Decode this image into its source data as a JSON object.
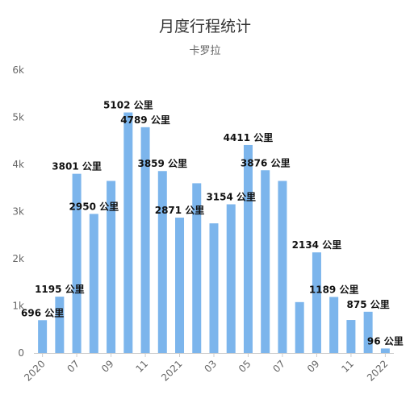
{
  "chart_data": {
    "type": "bar",
    "title": "月度行程统计",
    "subtitle": "卡罗拉",
    "unit": "公里",
    "ylim": [
      0,
      6000
    ],
    "y_ticks": [
      "0",
      "1k",
      "2k",
      "3k",
      "4k",
      "5k",
      "6k"
    ],
    "grid": false,
    "bar_color": "#7CB5EC",
    "x_tick_labels": [
      {
        "index": 0,
        "label": "2020"
      },
      {
        "index": 2,
        "label": "07"
      },
      {
        "index": 4,
        "label": "09"
      },
      {
        "index": 6,
        "label": "11"
      },
      {
        "index": 8,
        "label": "2021"
      },
      {
        "index": 10,
        "label": "03"
      },
      {
        "index": 12,
        "label": "05"
      },
      {
        "index": 14,
        "label": "07"
      },
      {
        "index": 16,
        "label": "09"
      },
      {
        "index": 18,
        "label": "11"
      },
      {
        "index": 20,
        "label": "2022"
      }
    ],
    "values": [
      696,
      1195,
      3801,
      2950,
      3650,
      5102,
      4789,
      3859,
      2871,
      3600,
      2750,
      3154,
      4411,
      3876,
      3650,
      1080,
      2134,
      1189,
      700,
      875,
      96
    ],
    "data_labels": [
      {
        "index": 0,
        "text": "696 公里"
      },
      {
        "index": 1,
        "text": "1195 公里"
      },
      {
        "index": 2,
        "text": "3801 公里"
      },
      {
        "index": 3,
        "text": "2950 公里"
      },
      {
        "index": 5,
        "text": "5102 公里"
      },
      {
        "index": 6,
        "text": "4789 公里"
      },
      {
        "index": 7,
        "text": "3859 公里"
      },
      {
        "index": 8,
        "text": "2871 公里"
      },
      {
        "index": 11,
        "text": "3154 公里"
      },
      {
        "index": 12,
        "text": "4411 公里"
      },
      {
        "index": 13,
        "text": "3876 公里"
      },
      {
        "index": 16,
        "text": "2134 公里"
      },
      {
        "index": 17,
        "text": "1189 公里"
      },
      {
        "index": 19,
        "text": "875 公里"
      },
      {
        "index": 20,
        "text": "96 公里"
      }
    ]
  }
}
